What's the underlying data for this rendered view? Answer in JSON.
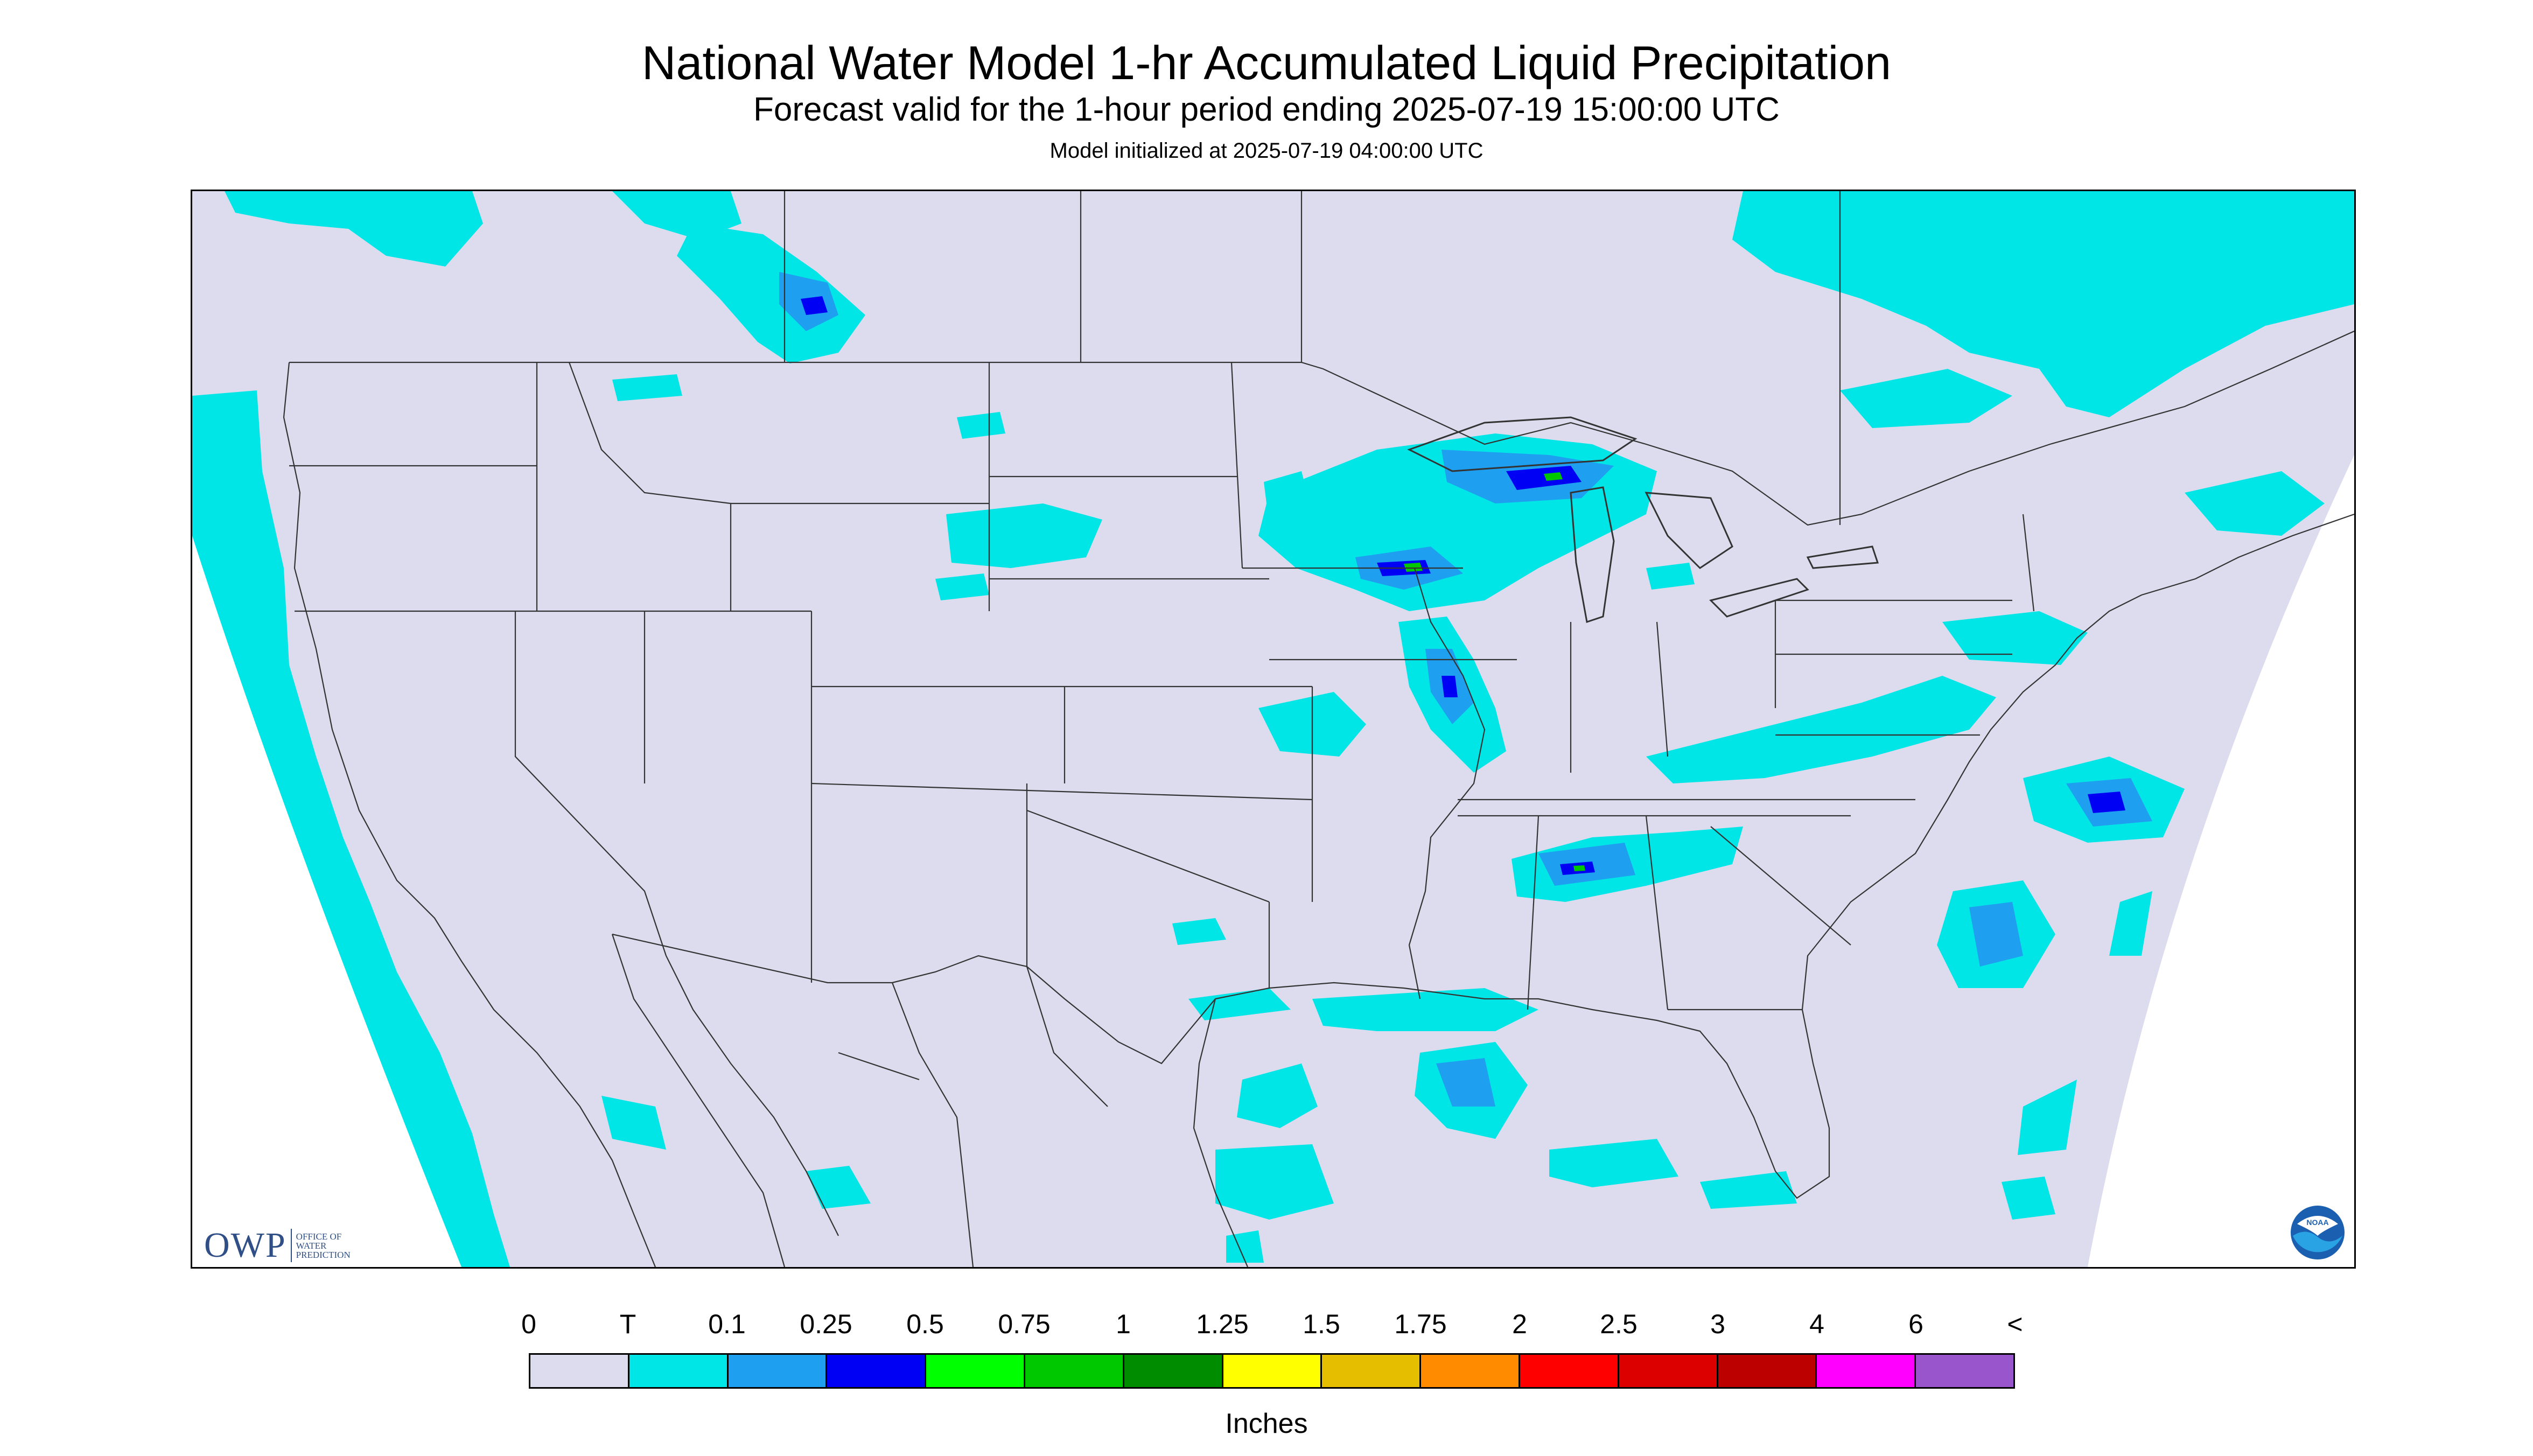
{
  "header": {
    "title": "National Water Model 1-hr Accumulated Liquid Precipitation",
    "subtitle": "Forecast valid for the 1-hour period ending 2025-07-19 15:00:00 UTC",
    "init_line": "Model initialized at 2025-07-19 04:00:00 UTC"
  },
  "logos": {
    "owp_mark": "OWP",
    "owp_line1": "OFFICE OF",
    "owp_line2": "WATER",
    "owp_line3": "PREDICTION",
    "noaa_text": "NOAA"
  },
  "colors": {
    "no_data_background": "#ffffff",
    "model_domain": "#dcdcee",
    "map_lines": "#333333"
  },
  "legend": {
    "labels": [
      "0",
      "T",
      "0.1",
      "0.25",
      "0.5",
      "0.75",
      "1",
      "1.25",
      "1.5",
      "1.75",
      "2",
      "2.5",
      "3",
      "4",
      "6",
      "<"
    ],
    "colors": [
      "#dcdcee",
      "#00e5e5",
      "#1f9fef",
      "#0000f5",
      "#00ff00",
      "#00c800",
      "#008c00",
      "#ffff00",
      "#e6be00",
      "#ff8c00",
      "#ff0000",
      "#dc0000",
      "#bc0000",
      "#ff00ff",
      "#9955cc"
    ],
    "units": "Inches"
  },
  "map": {
    "type": "precipitation-map",
    "region": "CONUS",
    "precip_areas": [
      {
        "name": "pacific-coast-offshore",
        "level": "T"
      },
      {
        "name": "southern-canada-prairies",
        "level": "T"
      },
      {
        "name": "alberta-cell",
        "level": "0.1"
      },
      {
        "name": "quebec-northeast",
        "level": "T"
      },
      {
        "name": "upper-midwest-wisconsin",
        "level": "0.5"
      },
      {
        "name": "iowa-illinois-band",
        "level": "0.25"
      },
      {
        "name": "tennessee-alabama",
        "level": "0.5"
      },
      {
        "name": "mid-atlantic",
        "level": "T"
      },
      {
        "name": "atlantic-offshore",
        "level": "0.25"
      },
      {
        "name": "gulf-coast",
        "level": "0.1"
      },
      {
        "name": "gulf-of-mexico",
        "level": "T"
      },
      {
        "name": "dakotas-nebraska",
        "level": "T"
      }
    ]
  }
}
